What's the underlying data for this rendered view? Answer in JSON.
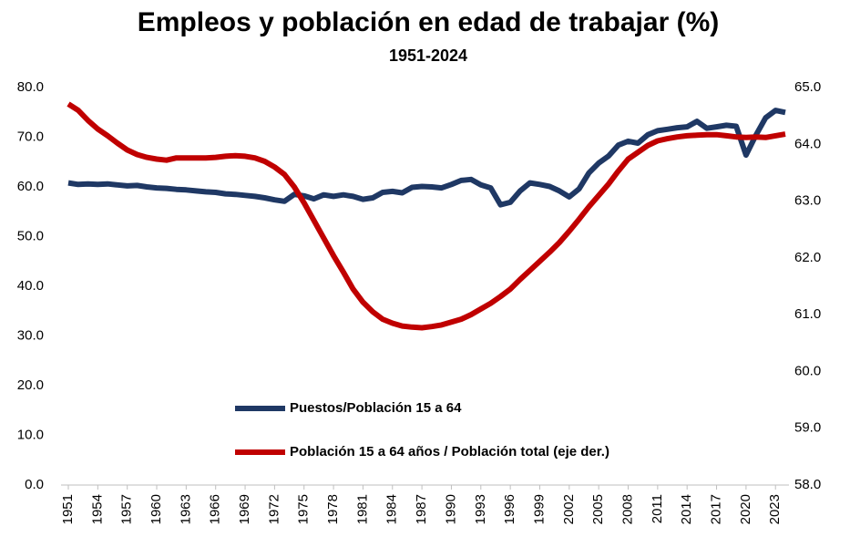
{
  "chart_data": {
    "type": "line",
    "title": "Empleos y población en edad de trabajar (%)",
    "subtitle": "1951-2024",
    "x": [
      1951,
      1952,
      1953,
      1954,
      1955,
      1956,
      1957,
      1958,
      1959,
      1960,
      1961,
      1962,
      1963,
      1964,
      1965,
      1966,
      1967,
      1968,
      1969,
      1970,
      1971,
      1972,
      1973,
      1974,
      1975,
      1976,
      1977,
      1978,
      1979,
      1980,
      1981,
      1982,
      1983,
      1984,
      1985,
      1986,
      1987,
      1988,
      1989,
      1990,
      1991,
      1992,
      1993,
      1994,
      1995,
      1996,
      1997,
      1998,
      1999,
      2000,
      2001,
      2002,
      2003,
      2004,
      2005,
      2006,
      2007,
      2008,
      2009,
      2010,
      2011,
      2012,
      2013,
      2014,
      2015,
      2016,
      2017,
      2018,
      2019,
      2020,
      2021,
      2022,
      2023,
      2024
    ],
    "xlim": [
      1951,
      2024
    ],
    "xticks": [
      1951,
      1954,
      1957,
      1960,
      1963,
      1966,
      1969,
      1972,
      1975,
      1978,
      1981,
      1984,
      1987,
      1990,
      1993,
      1996,
      1999,
      2002,
      2005,
      2008,
      2011,
      2014,
      2017,
      2020,
      2023
    ],
    "ylim": [
      0,
      80
    ],
    "yticks": [
      {
        "value": 0,
        "label": "0.0"
      },
      {
        "value": 10,
        "label": "10.0"
      },
      {
        "value": 20,
        "label": "20.0"
      },
      {
        "value": 30,
        "label": "30.0"
      },
      {
        "value": 40,
        "label": "40.0"
      },
      {
        "value": 50,
        "label": "50.0"
      },
      {
        "value": 60,
        "label": "60.0"
      },
      {
        "value": 70,
        "label": "70.0"
      },
      {
        "value": 80,
        "label": "80.0"
      }
    ],
    "y2lim": [
      58,
      65
    ],
    "y2ticks": [
      {
        "value": 58,
        "label": "58.0"
      },
      {
        "value": 59,
        "label": "59.0"
      },
      {
        "value": 60,
        "label": "60.0"
      },
      {
        "value": 61,
        "label": "61.0"
      },
      {
        "value": 62,
        "label": "62.0"
      },
      {
        "value": 63,
        "label": "63.0"
      },
      {
        "value": 64,
        "label": "64.0"
      },
      {
        "value": 65,
        "label": "65.0"
      }
    ],
    "legend": "lower center",
    "series": [
      {
        "name": "Puestos/Población 15 a 64",
        "color": "#1f3864",
        "axis": "y",
        "values": [
          60.8,
          60.5,
          60.6,
          60.5,
          60.6,
          60.4,
          60.2,
          60.3,
          60.0,
          59.8,
          59.7,
          59.5,
          59.4,
          59.2,
          59.0,
          58.9,
          58.6,
          58.5,
          58.3,
          58.1,
          57.8,
          57.4,
          57.1,
          58.5,
          58.2,
          57.6,
          58.4,
          58.1,
          58.4,
          58.1,
          57.5,
          57.8,
          58.9,
          59.1,
          58.8,
          59.9,
          60.1,
          60.0,
          59.8,
          60.5,
          61.3,
          61.5,
          60.4,
          59.8,
          56.4,
          56.9,
          59.2,
          60.8,
          60.5,
          60.1,
          59.2,
          58.0,
          59.6,
          62.8,
          64.8,
          66.2,
          68.4,
          69.2,
          68.8,
          70.5,
          71.3,
          71.6,
          71.9,
          72.1,
          73.2,
          71.8,
          72.1,
          72.4,
          72.2,
          66.4,
          70.4,
          73.9,
          75.4,
          75.0
        ]
      },
      {
        "name": "Población 15 a 64 años / Población total (eje der.)",
        "color": "#c00000",
        "axis": "y2",
        "values": [
          64.71,
          64.6,
          64.42,
          64.27,
          64.15,
          64.02,
          63.9,
          63.82,
          63.77,
          63.74,
          63.72,
          63.76,
          63.76,
          63.76,
          63.76,
          63.77,
          63.79,
          63.8,
          63.79,
          63.76,
          63.7,
          63.6,
          63.47,
          63.25,
          62.97,
          62.66,
          62.35,
          62.04,
          61.75,
          61.45,
          61.22,
          61.05,
          60.92,
          60.85,
          60.8,
          60.78,
          60.77,
          60.79,
          60.82,
          60.87,
          60.92,
          61.0,
          61.1,
          61.2,
          61.32,
          61.45,
          61.62,
          61.78,
          61.94,
          62.1,
          62.27,
          62.47,
          62.68,
          62.9,
          63.1,
          63.3,
          63.53,
          63.74,
          63.86,
          63.98,
          64.06,
          64.1,
          64.13,
          64.15,
          64.16,
          64.17,
          64.17,
          64.15,
          64.13,
          64.12,
          64.13,
          64.12,
          64.15,
          64.18
        ]
      }
    ]
  }
}
